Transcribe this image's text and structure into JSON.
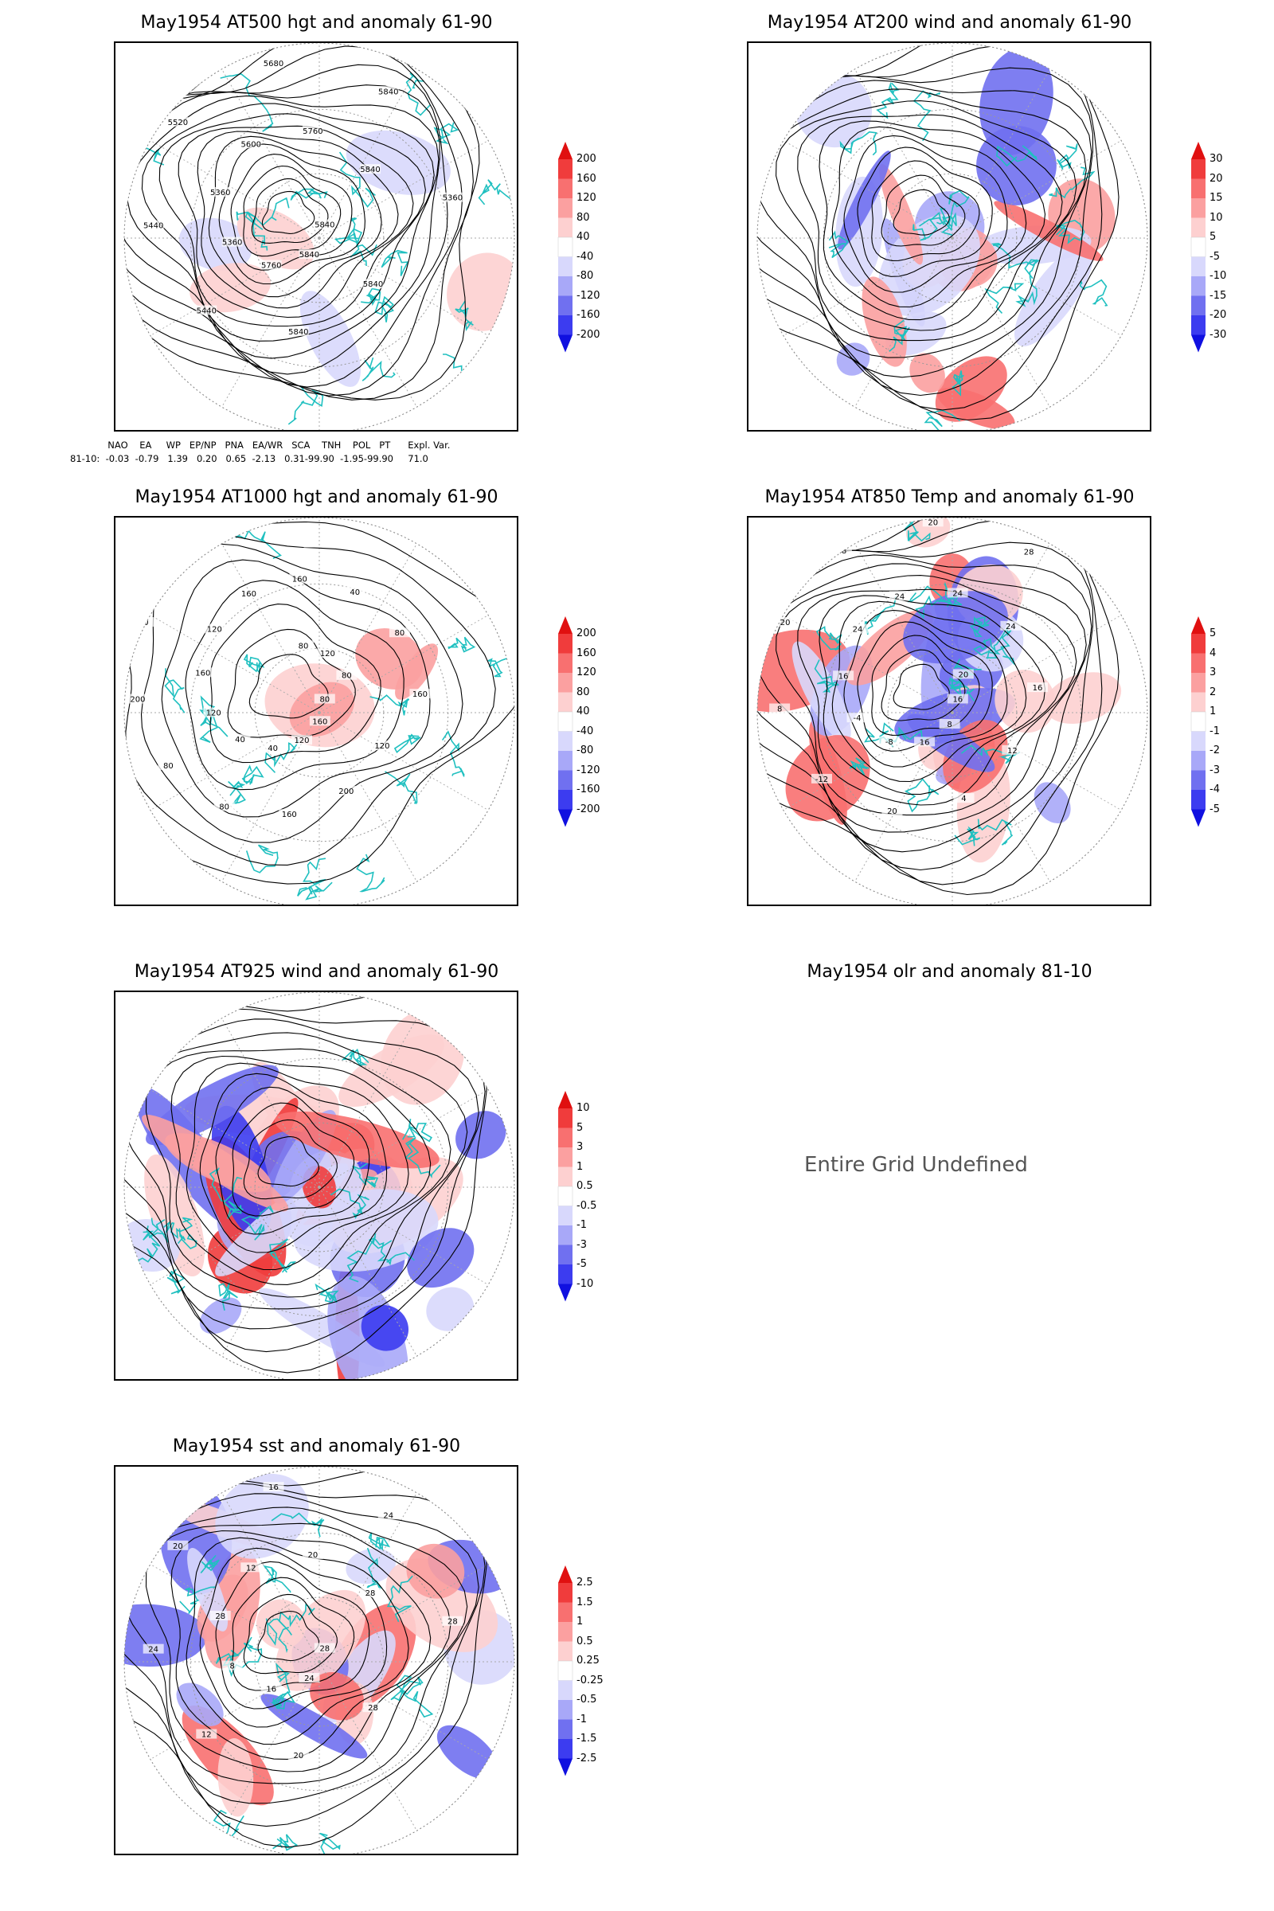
{
  "panels": [
    {
      "id": "p1",
      "title": "May1954 AT500 hgt and anomaly 61-90",
      "colorbar": [
        "200",
        "160",
        "120",
        "80",
        "40",
        "-40",
        "-80",
        "-120",
        "-160",
        "-200"
      ],
      "contour_labels": [
        "5840",
        "5840",
        "5840",
        "5840",
        "5760",
        "5440",
        "5360",
        "5440",
        "5360",
        "5520",
        "5600",
        "5680",
        "5760",
        "5840",
        "5840",
        "5360"
      ]
    },
    {
      "id": "p2",
      "title": "May1954 AT200 wind and anomaly 61-90",
      "colorbar": [
        "30",
        "20",
        "15",
        "10",
        "5",
        "-5",
        "-10",
        "-15",
        "-20",
        "-30"
      ],
      "contour_labels": []
    },
    {
      "id": "p3",
      "title": "May1954 AT1000 hgt and anomaly 61-90",
      "colorbar": [
        "200",
        "160",
        "120",
        "80",
        "40",
        "-40",
        "-80",
        "-120",
        "-160",
        "-200"
      ],
      "contour_labels": [
        "80",
        "120",
        "160",
        "200",
        "120",
        "160",
        "40",
        "80",
        "40",
        "80",
        "120",
        "200",
        "160",
        "80",
        "120",
        "120",
        "160",
        "120",
        "160",
        "80",
        "40",
        "120",
        "80",
        "80",
        "160"
      ]
    },
    {
      "id": "p4",
      "title": "May1954 AT850 Temp and anomaly 61-90",
      "colorbar": [
        "5",
        "4",
        "3",
        "2",
        "1",
        "-1",
        "-2",
        "-3",
        "-4",
        "-5"
      ],
      "contour_labels": [
        "16",
        "12",
        "8",
        "4",
        "16",
        "20",
        "-8",
        "-12",
        "-4",
        "8",
        "16",
        "20",
        "24",
        "28",
        "24",
        "20",
        "24",
        "28",
        "24",
        "20",
        "16"
      ]
    },
    {
      "id": "p5",
      "title": "May1954 AT925 wind and anomaly 61-90",
      "colorbar": [
        "10",
        "5",
        "3",
        "1",
        "0.5",
        "-0.5",
        "-1",
        "-3",
        "-5",
        "-10"
      ],
      "contour_labels": []
    },
    {
      "id": "p6",
      "title": "May1954 olr and anomaly 81-10",
      "undefined_text": "Entire Grid Undefined"
    },
    {
      "id": "p7",
      "title": "May1954 sst and anomaly 61-90",
      "colorbar": [
        "2.5",
        "1.5",
        "1",
        "0.5",
        "0.25",
        "-0.25",
        "-0.5",
        "-1",
        "-1.5",
        "-2.5"
      ],
      "contour_labels": [
        "28",
        "28",
        "24",
        "20",
        "16",
        "12",
        "8",
        "24",
        "28",
        "20",
        "12",
        "16",
        "20",
        "24",
        "28",
        "28"
      ]
    }
  ],
  "indices": {
    "header": "  NAO    EA     WP   EP/NP   PNA   EA/WR   SCA    TNH    POL   PT      Expl. Var.",
    "row": "81-10:  -0.03  -0.79   1.39   0.20   0.65  -2.13   0.31-99.90  -1.95-99.90     71.0"
  },
  "colors": {
    "coast": "#20c0c0",
    "pos_strong": "#e01010",
    "neg_strong": "#1010e0"
  }
}
